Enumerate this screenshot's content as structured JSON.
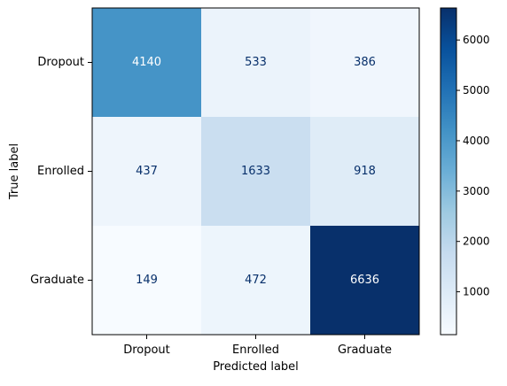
{
  "chart_data": {
    "type": "heatmap",
    "title": "",
    "xlabel": "Predicted label",
    "ylabel": "True label",
    "x_categories": [
      "Dropout",
      "Enrolled",
      "Graduate"
    ],
    "y_categories": [
      "Dropout",
      "Enrolled",
      "Graduate"
    ],
    "matrix": [
      [
        4140,
        533,
        386
      ],
      [
        437,
        1633,
        918
      ],
      [
        149,
        472,
        6636
      ]
    ],
    "colormap": "Blues",
    "colorbar": {
      "min": 149,
      "max": 6636,
      "ticks": [
        1000,
        2000,
        3000,
        4000,
        5000,
        6000
      ],
      "tick_labels": [
        "1000",
        "2000",
        "3000",
        "4000",
        "5000",
        "6000"
      ]
    },
    "text_colors": {
      "dark": "#08306b",
      "light": "#ffffff"
    }
  }
}
